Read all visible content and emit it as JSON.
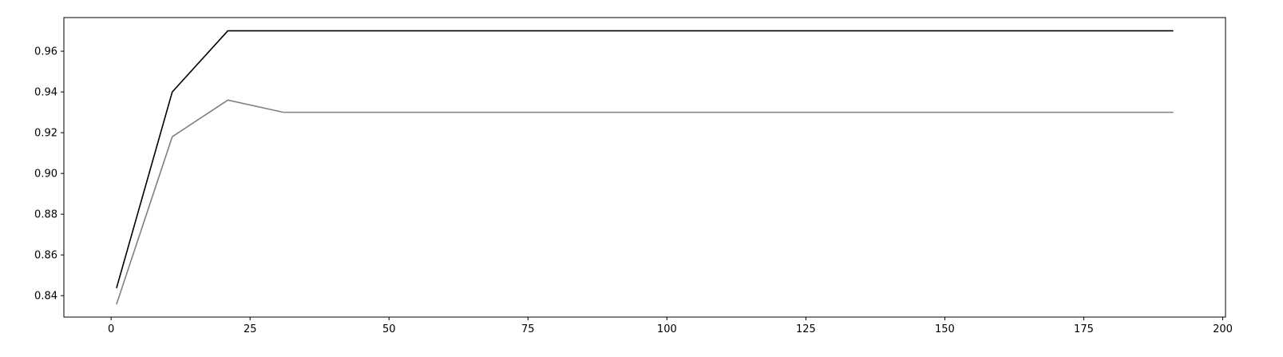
{
  "chart_data": {
    "type": "line",
    "title": "",
    "xlabel": "",
    "ylabel": "",
    "xlim": [
      -8.5,
      200.5
    ],
    "ylim": [
      0.8295,
      0.9765
    ],
    "x_ticks": [
      0,
      25,
      50,
      75,
      100,
      125,
      150,
      175,
      200
    ],
    "y_ticks": [
      0.84,
      0.86,
      0.88,
      0.9,
      0.92,
      0.94,
      0.96
    ],
    "x_tick_labels": [
      "0",
      "25",
      "50",
      "75",
      "100",
      "125",
      "150",
      "175",
      "200"
    ],
    "y_tick_labels": [
      "0.84",
      "0.86",
      "0.88",
      "0.90",
      "0.92",
      "0.94",
      "0.96"
    ],
    "grid": false,
    "legend": "none",
    "series": [
      {
        "color": "#000000",
        "points": [
          [
            1,
            0.844
          ],
          [
            11,
            0.94
          ],
          [
            21,
            0.97
          ],
          [
            31,
            0.97
          ],
          [
            41,
            0.97
          ],
          [
            51,
            0.97
          ],
          [
            61,
            0.97
          ],
          [
            71,
            0.97
          ],
          [
            81,
            0.97
          ],
          [
            91,
            0.97
          ],
          [
            101,
            0.97
          ],
          [
            111,
            0.97
          ],
          [
            121,
            0.97
          ],
          [
            131,
            0.97
          ],
          [
            141,
            0.97
          ],
          [
            151,
            0.97
          ],
          [
            161,
            0.97
          ],
          [
            171,
            0.97
          ],
          [
            181,
            0.97
          ],
          [
            191,
            0.97
          ]
        ]
      },
      {
        "color": "#808080",
        "points": [
          [
            1,
            0.836
          ],
          [
            11,
            0.918
          ],
          [
            21,
            0.936
          ],
          [
            31,
            0.93
          ],
          [
            41,
            0.93
          ],
          [
            51,
            0.93
          ],
          [
            61,
            0.93
          ],
          [
            71,
            0.93
          ],
          [
            81,
            0.93
          ],
          [
            91,
            0.93
          ],
          [
            101,
            0.93
          ],
          [
            111,
            0.93
          ],
          [
            121,
            0.93
          ],
          [
            131,
            0.93
          ],
          [
            141,
            0.93
          ],
          [
            151,
            0.93
          ],
          [
            161,
            0.93
          ],
          [
            171,
            0.93
          ],
          [
            181,
            0.93
          ],
          [
            191,
            0.93
          ]
        ]
      }
    ]
  }
}
